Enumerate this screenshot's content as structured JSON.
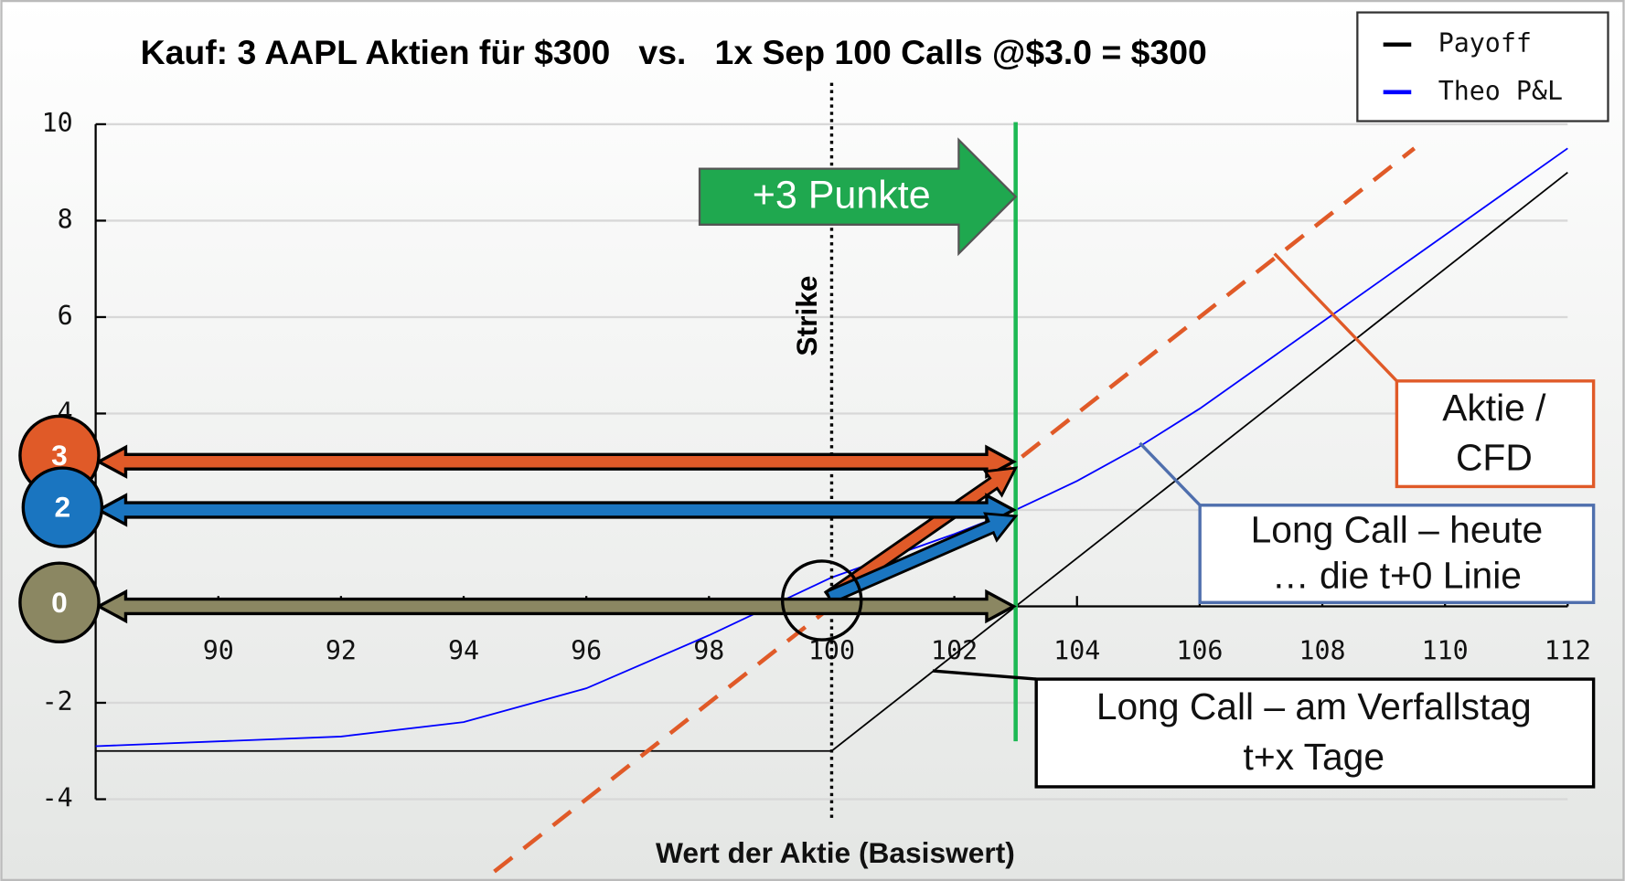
{
  "chart_data": {
    "type": "line",
    "title": "Kauf: 3 AAPL Aktien für $300   vs.   1x Sep 100 Calls @$3.0 = $300",
    "x_label": "Wert der Aktie (Basiswert)",
    "xlim": [
      88,
      112
    ],
    "ylim": [
      -4,
      10
    ],
    "xticks": [
      90,
      92,
      94,
      96,
      98,
      100,
      102,
      104,
      106,
      108,
      110,
      112
    ],
    "yticks": [
      -4,
      -2,
      0,
      2,
      4,
      6,
      8,
      10
    ],
    "grid": true,
    "legend": "upper right",
    "series": [
      {
        "name": "Payoff",
        "color": "#000000",
        "x": [
          88,
          100,
          112
        ],
        "values": [
          -3,
          -3,
          9
        ]
      },
      {
        "name": "Theo P&L",
        "color": "#0000ff",
        "x": [
          88,
          90,
          92,
          94,
          96,
          98,
          100,
          102,
          103,
          104,
          105,
          106,
          107,
          108,
          110,
          112
        ],
        "values": [
          -2.9,
          -2.8,
          -2.7,
          -2.4,
          -1.7,
          -0.6,
          0.6,
          1.5,
          2.0,
          2.6,
          3.3,
          4.1,
          5.0,
          5.9,
          7.7,
          9.5
        ]
      },
      {
        "color": "#e05a28",
        "dashed": true,
        "x": [
          94.5,
          109.5
        ],
        "values": [
          -5.5,
          9.5
        ]
      }
    ],
    "strike": {
      "value": 100,
      "label": "Strike"
    },
    "shift": {
      "to": 103,
      "label": "+3 Punkte"
    },
    "levels": [
      {
        "value": 3,
        "color": "#e05a28"
      },
      {
        "value": 2,
        "color": "#1a75c0"
      },
      {
        "value": 0,
        "color": "#8b8762"
      }
    ],
    "callouts": [
      {
        "lines": [
          "Aktie /",
          "CFD"
        ],
        "color": "#e05a28"
      },
      {
        "lines": [
          "Long Call – heute",
          "… die t+0 Linie"
        ],
        "color": "#4f6fad"
      },
      {
        "lines": [
          "Long Call – am Verfallstag",
          "t+x Tage"
        ],
        "color": "#000000"
      }
    ]
  }
}
